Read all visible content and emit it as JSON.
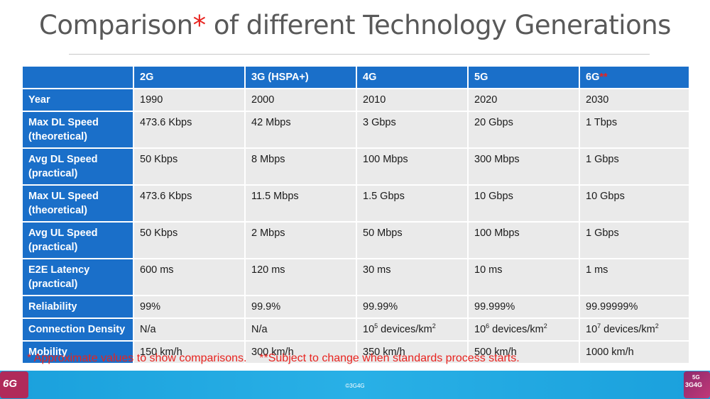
{
  "title": {
    "main": "Comparison",
    "star": "*",
    "rest": " of different Technology Generations"
  },
  "table": {
    "headers": [
      "",
      "2G",
      "3G (HSPA+)",
      "4G",
      "5G",
      "6G"
    ],
    "header_6g_marker": "**",
    "rows": [
      {
        "label": "Year",
        "cells": [
          "1990",
          "2000",
          "2010",
          "2020",
          "2030"
        ]
      },
      {
        "label": "Max DL Speed (theoretical)",
        "cells": [
          "473.6 Kbps",
          "42 Mbps",
          "3 Gbps",
          "20 Gbps",
          "1 Tbps"
        ]
      },
      {
        "label": "Avg DL Speed (practical)",
        "cells": [
          "50 Kbps",
          "8 Mbps",
          "100 Mbps",
          "300 Mbps",
          "1 Gbps"
        ]
      },
      {
        "label": "Max UL Speed (theoretical)",
        "cells": [
          "473.6 Kbps",
          "11.5 Mbps",
          "1.5 Gbps",
          "10 Gbps",
          "10 Gbps"
        ]
      },
      {
        "label": "Avg UL Speed (practical)",
        "cells": [
          "50 Kbps",
          "2 Mbps",
          "50 Mbps",
          "100 Mbps",
          "1 Gbps"
        ]
      },
      {
        "label": "E2E Latency (practical)",
        "cells": [
          "600 ms",
          "120 ms",
          "30 ms",
          "10 ms",
          "1 ms"
        ]
      },
      {
        "label": "Reliability",
        "cells": [
          "99%",
          "99.9%",
          "99.99%",
          "99.999%",
          "99.99999%"
        ]
      },
      {
        "label": "Connection Density",
        "cells": [
          "N/a",
          "N/a",
          "10|5| devices/km|2",
          "10|6| devices/km|2",
          "10|7| devices/km|2"
        ]
      },
      {
        "label": "Mobility",
        "cells": [
          "150 km/h",
          "300 km/h",
          "350 km/h",
          "500 km/h",
          "1000 km/h"
        ]
      }
    ]
  },
  "footnote": "* Approximate values to show comparisons.    **Subject to change when standards process starts.",
  "footer": {
    "copyright": "©3G4G",
    "logo_left": "6G",
    "logo_right_small": "5G",
    "logo_right_text": "3G4G"
  },
  "colors": {
    "header_blue": "#1a6fc9",
    "cell_grey": "#eaeaea",
    "accent_red": "#e8231f",
    "footer_blue": "#1aa0dc"
  }
}
